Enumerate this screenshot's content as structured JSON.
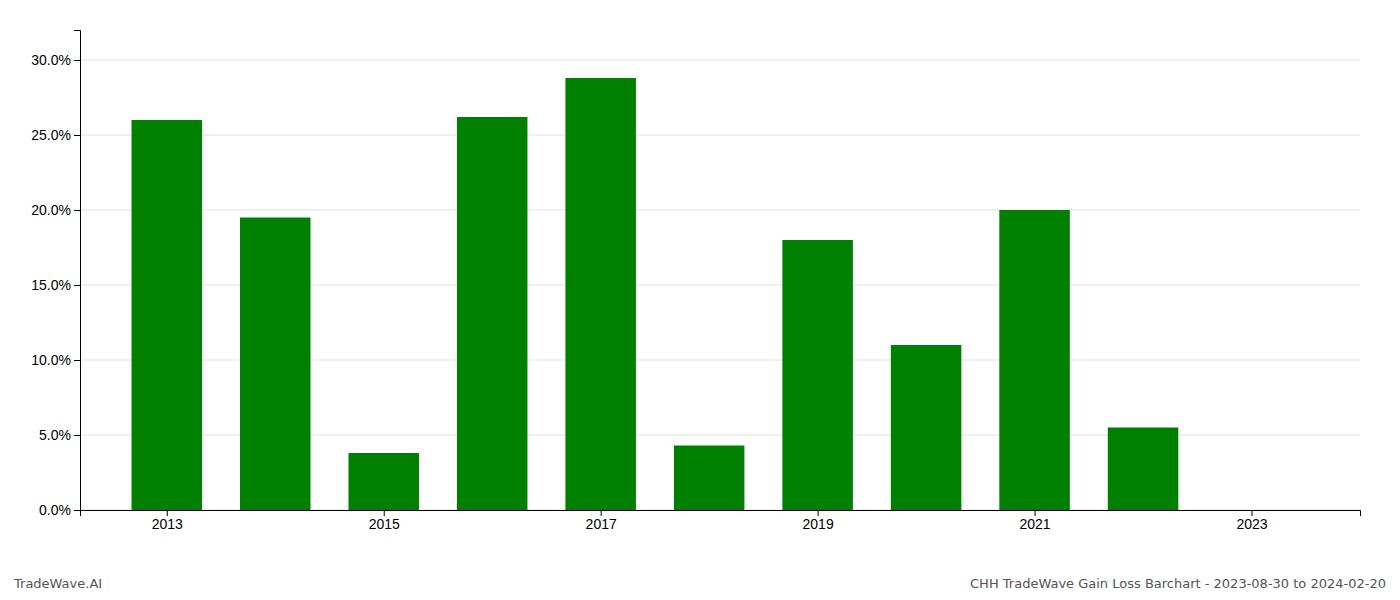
{
  "chart_data": {
    "type": "bar",
    "x": [
      2013,
      2014,
      2015,
      2016,
      2017,
      2018,
      2019,
      2020,
      2021,
      2022,
      2023
    ],
    "values": [
      0.26,
      0.195,
      0.038,
      0.262,
      0.288,
      0.043,
      0.18,
      0.11,
      0.2,
      0.055,
      0.0
    ],
    "color": "#008000",
    "xlim": [
      2012.2,
      2024.0
    ],
    "xticks": [
      2013,
      2015,
      2017,
      2019,
      2021,
      2023
    ],
    "ylim": [
      0,
      0.32
    ],
    "yticks": [
      {
        "value": 0.0,
        "label": "0.0%"
      },
      {
        "value": 0.05,
        "label": "5.0%"
      },
      {
        "value": 0.1,
        "label": "10.0%"
      },
      {
        "value": 0.15,
        "label": "15.0%"
      },
      {
        "value": 0.2,
        "label": "20.0%"
      },
      {
        "value": 0.25,
        "label": "25.0%"
      },
      {
        "value": 0.3,
        "label": "30.0%"
      }
    ],
    "grid": true,
    "annotations": [
      "TradeWave.AI",
      "CHH TradeWave Gain Loss Barchart - 2023-08-30 to 2024-02-20"
    ]
  }
}
